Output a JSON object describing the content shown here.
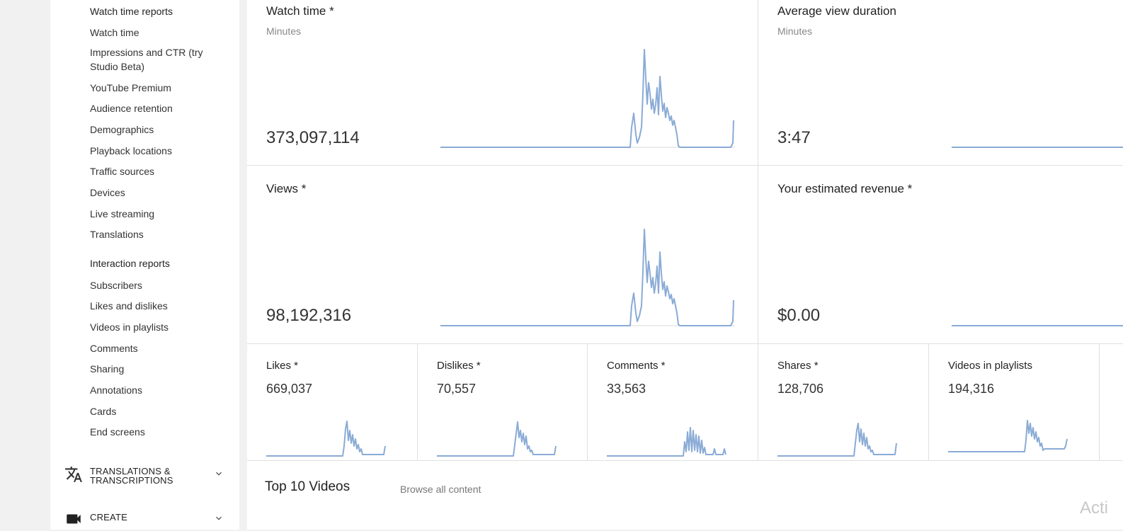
{
  "sidebar": {
    "watch_heading": "Watch time reports",
    "watch_items": [
      "Watch time",
      "Impressions and CTR (try Studio Beta)",
      "YouTube Premium",
      "Audience retention",
      "Demographics",
      "Playback locations",
      "Traffic sources",
      "Devices",
      "Live streaming",
      "Translations"
    ],
    "interaction_heading": "Interaction reports",
    "interaction_items": [
      "Subscribers",
      "Likes and dislikes",
      "Videos in playlists",
      "Comments",
      "Sharing",
      "Annotations",
      "Cards",
      "End screens"
    ],
    "sections": [
      {
        "label": "TRANSLATIONS & TRANSCRIPTIONS",
        "icon": "translate-icon"
      },
      {
        "label": "CREATE",
        "icon": "video-camera-icon"
      }
    ]
  },
  "cards": {
    "watch_time": {
      "title": "Watch time *",
      "unit": "Minutes",
      "value": "373,097,114"
    },
    "avg_view_duration": {
      "title": "Average view duration",
      "unit": "Minutes",
      "value": "3:47"
    },
    "views": {
      "title": "Views *",
      "value": "98,192,316"
    },
    "revenue": {
      "title": "Your estimated revenue *",
      "value": "$0.00"
    }
  },
  "small_cards": [
    {
      "title": "Likes *",
      "value": "669,037"
    },
    {
      "title": "Dislikes *",
      "value": "70,557"
    },
    {
      "title": "Comments *",
      "value": "33,563"
    },
    {
      "title": "Shares *",
      "value": "128,706"
    },
    {
      "title": "Videos in playlists",
      "value": "194,316"
    }
  ],
  "top_videos": {
    "title": "Top 10 Videos",
    "browse_label": "Browse all content"
  },
  "watermark": "Acti",
  "colors": {
    "sparkline": "#8aabd6",
    "border": "#e0e0e0"
  }
}
